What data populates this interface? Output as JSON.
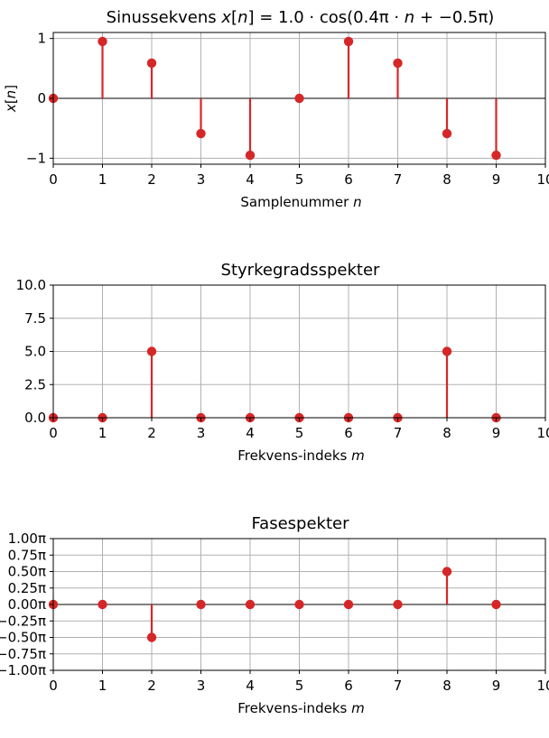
{
  "chart_data": [
    {
      "type": "stem",
      "title": "Sinussekvens $x[n] = 1.0\\cdot\\cos(0.4\\pi\\cdot n + -0.5\\pi)$",
      "title_parts": [
        "Sinussekvens ",
        "x",
        "[",
        "n",
        "] = 1.0 · cos(0.4",
        "π",
        " · ",
        "n",
        " + −0.5",
        "π",
        ")"
      ],
      "xlabel": "Samplenummer",
      "xlabel_var": "n",
      "ylabel": "x[n]",
      "x": [
        0,
        1,
        2,
        3,
        4,
        5,
        6,
        7,
        8,
        9
      ],
      "values": [
        0.0,
        0.951,
        0.588,
        -0.588,
        -0.951,
        0.0,
        0.951,
        0.588,
        -0.588,
        -0.951
      ],
      "xlim": [
        0,
        10
      ],
      "ylim": [
        -1.1,
        1.1
      ],
      "xticks": [
        0,
        1,
        2,
        3,
        4,
        5,
        6,
        7,
        8,
        9,
        10
      ],
      "xtick_labels": [
        "0",
        "1",
        "2",
        "3",
        "4",
        "5",
        "6",
        "7",
        "8",
        "9",
        "10"
      ],
      "yticks": [
        -1,
        0,
        1
      ],
      "ytick_labels": [
        "−1",
        "0",
        "1"
      ],
      "grid": true,
      "baseline": 0,
      "color": "#d62728"
    },
    {
      "type": "stem",
      "title": "Styrkegradsspekter",
      "xlabel": "Frekvens-indeks",
      "xlabel_var": "m",
      "ylabel": "",
      "x": [
        0,
        1,
        2,
        3,
        4,
        5,
        6,
        7,
        8,
        9
      ],
      "values": [
        0,
        0,
        5,
        0,
        0,
        0,
        0,
        0,
        5,
        0
      ],
      "xlim": [
        0,
        10
      ],
      "ylim": [
        0,
        10
      ],
      "xticks": [
        0,
        1,
        2,
        3,
        4,
        5,
        6,
        7,
        8,
        9,
        10
      ],
      "xtick_labels": [
        "0",
        "1",
        "2",
        "3",
        "4",
        "5",
        "6",
        "7",
        "8",
        "9",
        "10"
      ],
      "yticks": [
        0,
        2.5,
        5,
        7.5,
        10
      ],
      "ytick_labels": [
        "0.0",
        "2.5",
        "5.0",
        "7.5",
        "10.0"
      ],
      "grid": true,
      "baseline": 0,
      "color": "#d62728"
    },
    {
      "type": "stem",
      "title": "Fasespekter",
      "xlabel": "Frekvens-indeks",
      "xlabel_var": "m",
      "ylabel": "",
      "x": [
        0,
        1,
        2,
        3,
        4,
        5,
        6,
        7,
        8,
        9
      ],
      "values": [
        0,
        0,
        -0.5,
        0,
        0,
        0,
        0,
        0,
        0.5,
        0
      ],
      "value_unit": "π",
      "xlim": [
        0,
        10
      ],
      "ylim": [
        -1,
        1
      ],
      "xticks": [
        0,
        1,
        2,
        3,
        4,
        5,
        6,
        7,
        8,
        9,
        10
      ],
      "xtick_labels": [
        "0",
        "1",
        "2",
        "3",
        "4",
        "5",
        "6",
        "7",
        "8",
        "9",
        "10"
      ],
      "yticks": [
        -1,
        -0.75,
        -0.5,
        -0.25,
        0,
        0.25,
        0.5,
        0.75,
        1
      ],
      "ytick_labels": [
        "−1.00π",
        "−0.75π",
        "−0.50π",
        "−0.25π",
        "0.00π",
        "0.25π",
        "0.50π",
        "0.75π",
        "1.00π"
      ],
      "grid": true,
      "baseline": 0,
      "color": "#d62728"
    }
  ]
}
